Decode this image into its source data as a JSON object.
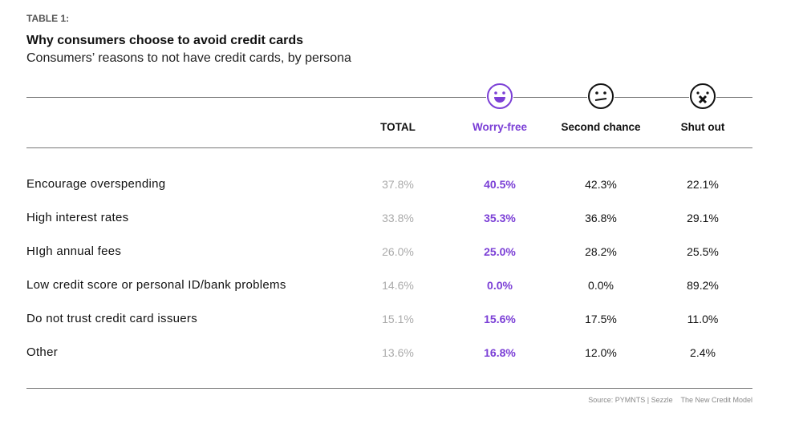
{
  "label": "TABLE 1:",
  "title": "Why consumers choose to avoid credit cards",
  "subtitle": "Consumers’ reasons to not have credit cards, by persona",
  "colors": {
    "accent": "#7b3fd6",
    "total": "#aaaaaa",
    "text": "#111111"
  },
  "chart_data": {
    "type": "table",
    "columns": [
      {
        "name": "TOTAL",
        "icon": null
      },
      {
        "name": "Worry-free",
        "icon": "happy-face-icon"
      },
      {
        "name": "Second chance",
        "icon": "neutral-face-icon"
      },
      {
        "name": "Shut out",
        "icon": "dead-face-icon"
      }
    ],
    "rows": [
      {
        "label": "Encourage overspending",
        "values": [
          "37.8%",
          "40.5%",
          "42.3%",
          "22.1%"
        ]
      },
      {
        "label": "High interest rates",
        "values": [
          "33.8%",
          "35.3%",
          "36.8%",
          "29.1%"
        ]
      },
      {
        "label": "HIgh annual fees",
        "values": [
          "26.0%",
          "25.0%",
          "28.2%",
          "25.5%"
        ]
      },
      {
        "label": "Low credit score or personal ID/bank problems",
        "values": [
          "14.6%",
          "0.0%",
          "0.0%",
          "89.2%"
        ]
      },
      {
        "label": "Do not trust credit card issuers",
        "values": [
          "15.1%",
          "15.6%",
          "17.5%",
          "11.0%"
        ]
      },
      {
        "label": "Other",
        "values": [
          "13.6%",
          "16.8%",
          "12.0%",
          "2.4%"
        ]
      }
    ]
  },
  "source": "Source: PYMNTS | Sezzle    The New Credit Model"
}
